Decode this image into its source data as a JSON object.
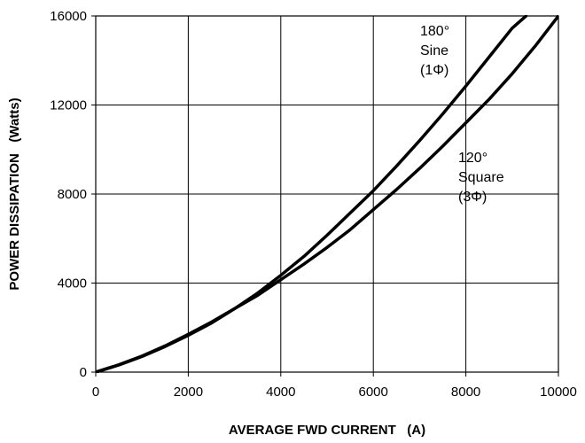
{
  "chart_data": {
    "type": "line",
    "title": "",
    "xlabel": "AVERAGE FWD CURRENT   (A)",
    "ylabel": "POWER DISSIPATION   (Watts)",
    "xlim": [
      0,
      10000
    ],
    "ylim": [
      0,
      16000
    ],
    "xticks": [
      "0",
      "2000",
      "4000",
      "6000",
      "8000",
      "10000"
    ],
    "yticks": [
      "0",
      "4000",
      "8000",
      "12000",
      "16000"
    ],
    "grid": true,
    "series": [
      {
        "name": "180° Sine (1Φ)",
        "label_lines": [
          "180°",
          "Sine",
          "(1Φ)"
        ],
        "x": [
          0,
          500,
          1000,
          1500,
          2000,
          2500,
          3000,
          3500,
          4000,
          4500,
          5000,
          5500,
          6000,
          6500,
          7000,
          7500,
          8000,
          8500,
          9000,
          9300
        ],
        "y": [
          0,
          320,
          700,
          1150,
          1650,
          2200,
          2850,
          3550,
          4350,
          5200,
          6150,
          7150,
          8150,
          9250,
          10400,
          11600,
          12850,
          14150,
          15450,
          16000
        ]
      },
      {
        "name": "120° Square (3Φ)",
        "label_lines": [
          "120°",
          "Square",
          "(3Φ)"
        ],
        "x": [
          0,
          500,
          1000,
          1500,
          2000,
          2500,
          3000,
          3500,
          4000,
          4500,
          5000,
          5500,
          6000,
          6500,
          7000,
          7500,
          8000,
          8500,
          9000,
          9500,
          10000
        ],
        "y": [
          0,
          330,
          720,
          1180,
          1700,
          2250,
          2850,
          3450,
          4150,
          4850,
          5600,
          6400,
          7300,
          8200,
          9150,
          10150,
          11200,
          12250,
          13400,
          14650,
          16000
        ]
      }
    ]
  }
}
